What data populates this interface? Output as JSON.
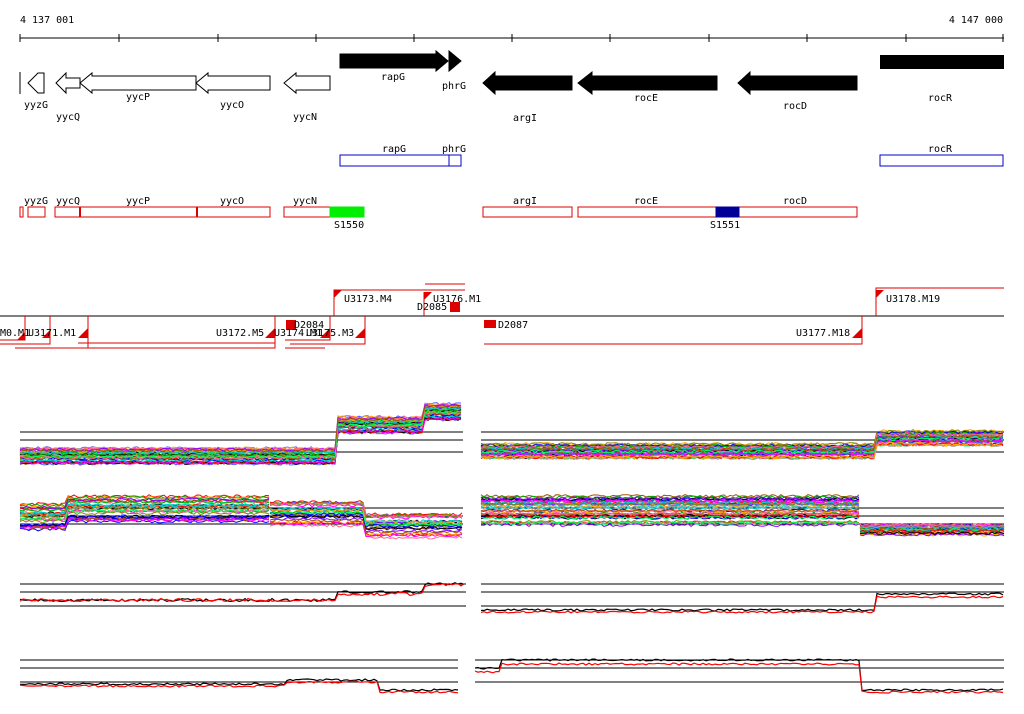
{
  "ruler": {
    "start_label": "4 137 001",
    "end_label": "4 147 000"
  },
  "genes_top": [
    {
      "label": "yyzG",
      "style": "outline",
      "dir": "left"
    },
    {
      "label": "yycQ",
      "style": "outline",
      "dir": "left"
    },
    {
      "label": "yycP",
      "style": "outline",
      "dir": "left"
    },
    {
      "label": "yycO",
      "style": "outline",
      "dir": "left"
    },
    {
      "label": "yycN",
      "style": "outline",
      "dir": "left"
    },
    {
      "label": "rapG",
      "style": "filled",
      "dir": "right"
    },
    {
      "label": "phrG",
      "style": "filled",
      "dir": "right"
    },
    {
      "label": "argI",
      "style": "filled",
      "dir": "left"
    },
    {
      "label": "rocE",
      "style": "filled",
      "dir": "left"
    },
    {
      "label": "rocD",
      "style": "filled",
      "dir": "left"
    },
    {
      "label": "rocR",
      "style": "filled",
      "dir": "none"
    }
  ],
  "blue_track": [
    {
      "label": "rapG"
    },
    {
      "label": "phrG"
    },
    {
      "label": "rocR"
    }
  ],
  "red_track": {
    "labels": [
      "yyzG",
      "yycQ",
      "yycP",
      "yycO",
      "yycN",
      "argI",
      "rocE",
      "rocD"
    ],
    "markers": [
      {
        "label": "S1550",
        "color": "#00ee00"
      },
      {
        "label": "S1551",
        "color": "#000099"
      }
    ]
  },
  "segments": {
    "labels": [
      "U3173.M4",
      "U3176.M1",
      "D2085",
      "U3178.M19",
      "D2084",
      "D2087",
      "U3177.M18",
      "U3172.M5",
      "U3174.M1",
      "U3175.M3",
      "U3171.M1",
      "M0.M1"
    ]
  },
  "plot_colors": [
    "#000000",
    "#ff0000",
    "#00aa00",
    "#0000ff",
    "#ff00ff",
    "#00cccc",
    "#ffaa00",
    "#8800ff",
    "#888800",
    "#ff6688",
    "#00ff66",
    "#aa5500",
    "#5566ff",
    "#999999"
  ]
}
